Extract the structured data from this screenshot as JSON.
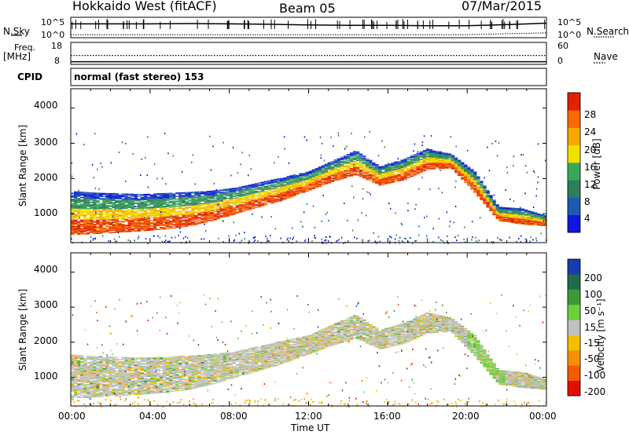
{
  "header": {
    "station": "Hokkaido West (fitACF)",
    "beam": "Beam 05",
    "date": "07/Mar/2015"
  },
  "left_labels": {
    "nsky": "N.Sky",
    "freq": "Freq.",
    "freq_unit": "[MHz]",
    "cpid": "CPID"
  },
  "right_labels": {
    "nsearch": "N.Search",
    "nave": "Nave"
  },
  "cpid_text": "normal (fast stereo) 153",
  "chart_data": [
    {
      "type": "line",
      "title": "N.Sky / N.Search",
      "ylabel_left": "N.Sky",
      "ylabel_right": "N.Search",
      "left_ticks": [
        "10^5",
        "10^0"
      ],
      "right_ticks": [
        "10^5",
        "10^0"
      ],
      "x": [
        "00:00",
        "02:00",
        "04:00",
        "06:00",
        "08:00",
        "10:00",
        "12:00",
        "14:00",
        "16:00",
        "18:00",
        "20:00",
        "22:00",
        "24:00"
      ],
      "series": [
        {
          "name": "N.Sky",
          "style": "solid",
          "values": [
            3.6,
            3.6,
            3.6,
            3.7,
            3.6,
            3.5,
            3.3,
            3.2,
            3.2,
            3.1,
            3.1,
            3.4,
            3.8
          ]
        },
        {
          "name": "N.Search",
          "style": "dotted",
          "values": [
            0.6,
            0.6,
            0.6,
            0.6,
            0.6,
            0.6,
            0.6,
            0.6,
            0.6,
            0.6,
            0.6,
            0.9,
            1.1
          ]
        }
      ]
    },
    {
      "type": "line",
      "title": "Freq. / Nave",
      "left_ticks": [
        "18",
        "8"
      ],
      "right_ticks": [
        "60",
        "0"
      ],
      "ylim_left": [
        8,
        18
      ],
      "ylim_right": [
        0,
        60
      ],
      "x": [
        "00:00",
        "24:00"
      ],
      "series": [
        {
          "name": "Freq.",
          "style": "dotted",
          "values": [
            12.0,
            12.0
          ]
        },
        {
          "name": "Nave",
          "style": "solid",
          "values": [
            0.9,
            0.9
          ]
        }
      ]
    },
    {
      "type": "heatmap",
      "title": "Power",
      "xlabel": "",
      "ylabel": "Slant Range [km]",
      "ylim": [
        180,
        4550
      ],
      "yticks": [
        "4000",
        "3000",
        "2000",
        "1000"
      ],
      "colorbar_label": "Power [dB]",
      "colorbar_ticks": [
        "28",
        "24",
        "20",
        "16",
        "12",
        "8",
        "4"
      ],
      "colorbar_colors": [
        "#1016e0",
        "#1f5ab0",
        "#2e7d5e",
        "#3aa85a",
        "#f1e000",
        "#f6a800",
        "#f66a00",
        "#e02000"
      ],
      "echo_upper_km": [
        1650,
        1600,
        1580,
        1560,
        1590,
        1620,
        1660,
        1750,
        1900,
        2050,
        2200,
        2500,
        2800,
        2350,
        2550,
        2850,
        2700,
        2200,
        1200,
        1150,
        950
      ],
      "echo_lower_km": [
        400,
        420,
        460,
        500,
        560,
        640,
        800,
        1000,
        1200,
        1400,
        1650,
        1900,
        2100,
        1800,
        1950,
        2250,
        2300,
        1600,
        800,
        700,
        650
      ],
      "x_hours": [
        0,
        1.2,
        2.4,
        3.6,
        4.8,
        6,
        7.2,
        8.4,
        9.6,
        10.8,
        12,
        13.2,
        14.4,
        15.6,
        16.8,
        18,
        19.2,
        20.4,
        21.6,
        22.8,
        24
      ]
    },
    {
      "type": "heatmap",
      "title": "Velocity",
      "xlabel": "Time UT",
      "ylabel": "Slant Range [km]",
      "ylim": [
        180,
        4550
      ],
      "yticks": [
        "4000",
        "3000",
        "2000",
        "1000"
      ],
      "xticks": [
        "00:00",
        "04:00",
        "08:00",
        "12:00",
        "16:00",
        "20:00",
        "00:00"
      ],
      "colorbar_label": "Velocity [m s⁻¹]",
      "colorbar_ticks": [
        "200",
        "100",
        "50",
        "15",
        "-15",
        "-50",
        "-100",
        "-200"
      ],
      "colorbar_colors": [
        "#1a3ab0",
        "#1e6d4a",
        "#3a9a3a",
        "#6bd03a",
        "#c0c0c0",
        "#f2c000",
        "#f69000",
        "#f55a00",
        "#e01000"
      ]
    }
  ]
}
